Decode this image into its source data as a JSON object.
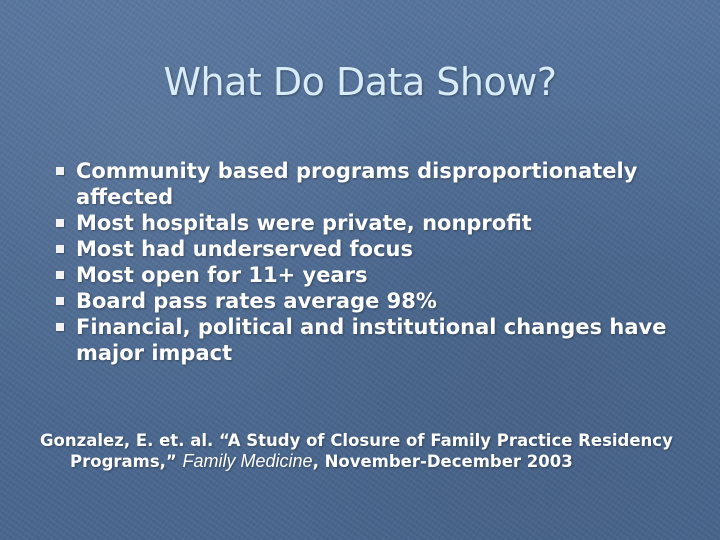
{
  "slide": {
    "title": "What Do Data Show?",
    "bullets": [
      "Community based programs disproportionately affected",
      "Most hospitals were private, nonprofit",
      "Most had underserved focus",
      "Most open for 11+ years",
      "Board pass rates average 98%",
      "Financial, political and institutional changes have major impact"
    ],
    "citation": {
      "line1": "Gonzalez, E. et. al. “A Study of Closure of Family Practice Residency",
      "line2_prefix": "Programs,”",
      "journal": "Family Medicine",
      "line2_suffix": ", November-December 2003"
    }
  },
  "colors": {
    "background": "#4f6f96",
    "title_text": "#d8ecf8",
    "body_text": "#ffffff",
    "bullet_marker": "#f2f2f2"
  }
}
